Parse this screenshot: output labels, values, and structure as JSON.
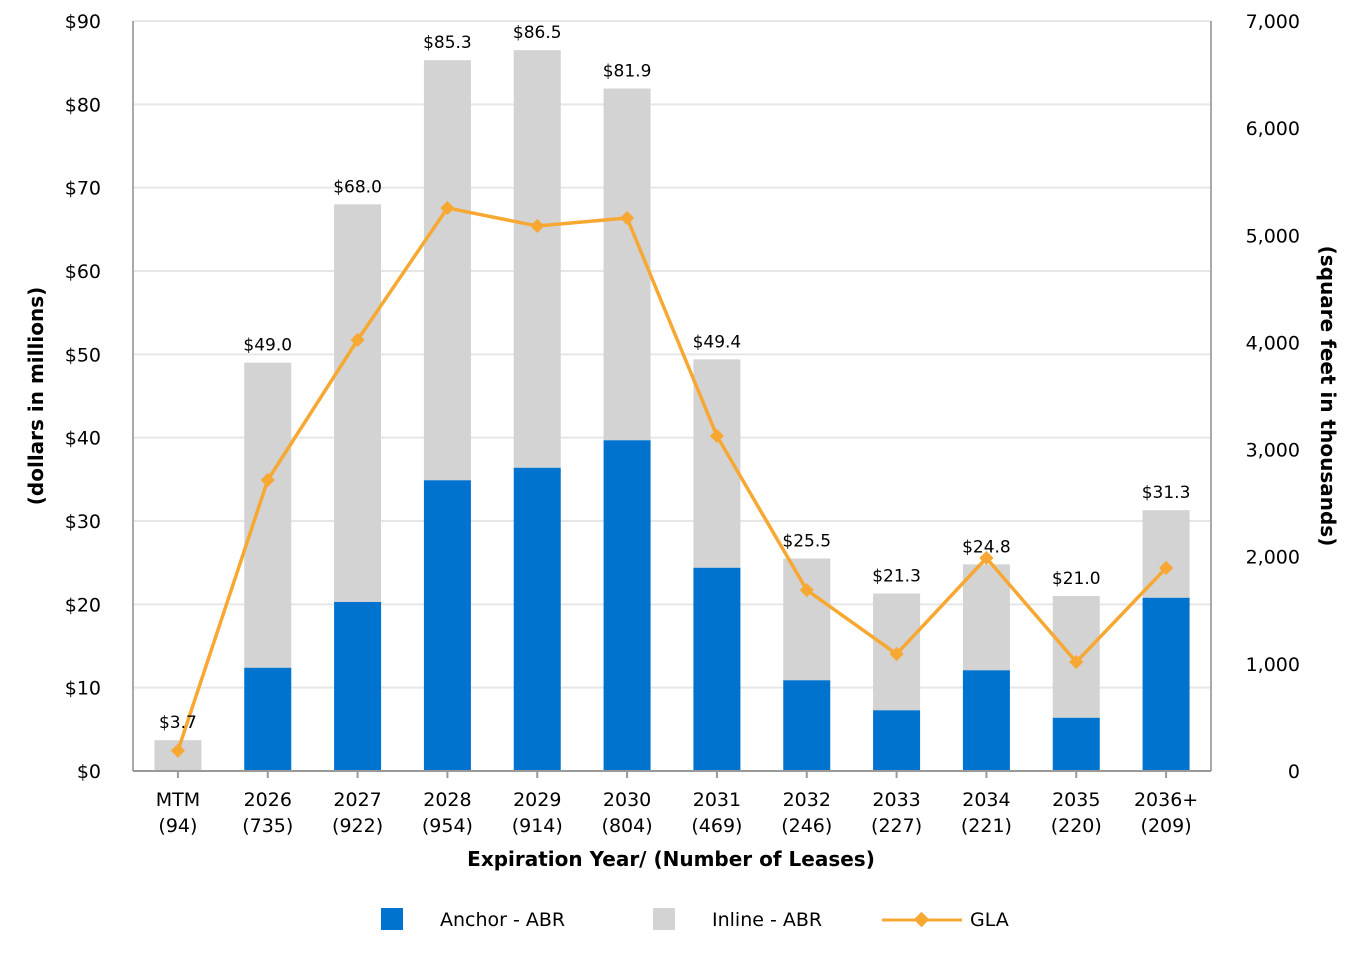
{
  "chart_data": {
    "type": "bar",
    "stacked": true,
    "xlabel": "Expiration Year/ (Number of Leases)",
    "ylabel": "(dollars in millions)",
    "y2label": "(square feet in thousands)",
    "ylim": [
      0,
      90
    ],
    "y2lim": [
      0,
      7000
    ],
    "yticks": [
      "$0",
      "$10",
      "$20",
      "$30",
      "$40",
      "$50",
      "$60",
      "$70",
      "$80",
      "$90"
    ],
    "y2ticks": [
      "0",
      "1,000",
      "2,000",
      "3,000",
      "4,000",
      "5,000",
      "6,000",
      "7,000"
    ],
    "grid": true,
    "legend_position": "bottom",
    "categories": [
      [
        "MTM",
        "(94)"
      ],
      [
        "2026",
        "(735)"
      ],
      [
        "2027",
        "(922)"
      ],
      [
        "2028",
        "(954)"
      ],
      [
        "2029",
        "(914)"
      ],
      [
        "2030",
        "(804)"
      ],
      [
        "2031",
        "(469)"
      ],
      [
        "2032",
        "(246)"
      ],
      [
        "2033",
        "(227)"
      ],
      [
        "2034",
        "(221)"
      ],
      [
        "2035",
        "(220)"
      ],
      [
        "2036+",
        "(209)"
      ]
    ],
    "totals": [
      3.7,
      49.0,
      68.0,
      85.3,
      86.5,
      81.9,
      49.4,
      25.5,
      21.3,
      24.8,
      21.0,
      31.3
    ],
    "total_labels": [
      "$3.7",
      "$49.0",
      "$68.0",
      "$85.3",
      "$86.5",
      "$81.9",
      "$49.4",
      "$25.5",
      "$21.3",
      "$24.8",
      "$21.0",
      "$31.3"
    ],
    "series": [
      {
        "name": "Anchor - ABR",
        "type": "bar",
        "color": "#0073cf",
        "values": [
          0,
          12.4,
          20.3,
          34.9,
          36.4,
          39.7,
          24.4,
          10.9,
          7.3,
          12.1,
          6.4,
          20.8
        ]
      },
      {
        "name": "Inline - ABR",
        "type": "bar",
        "color": "#d3d3d3",
        "values": [
          3.7,
          36.6,
          47.7,
          50.4,
          50.1,
          42.2,
          25.0,
          14.6,
          14.0,
          12.7,
          14.6,
          10.5
        ]
      },
      {
        "name": "GLA",
        "type": "line",
        "axis": "right",
        "color": "#f7a833",
        "values": [
          190,
          2716,
          4023,
          5255,
          5087,
          5161,
          3127,
          1689,
          1092,
          1988,
          1017,
          1895
        ]
      }
    ]
  }
}
